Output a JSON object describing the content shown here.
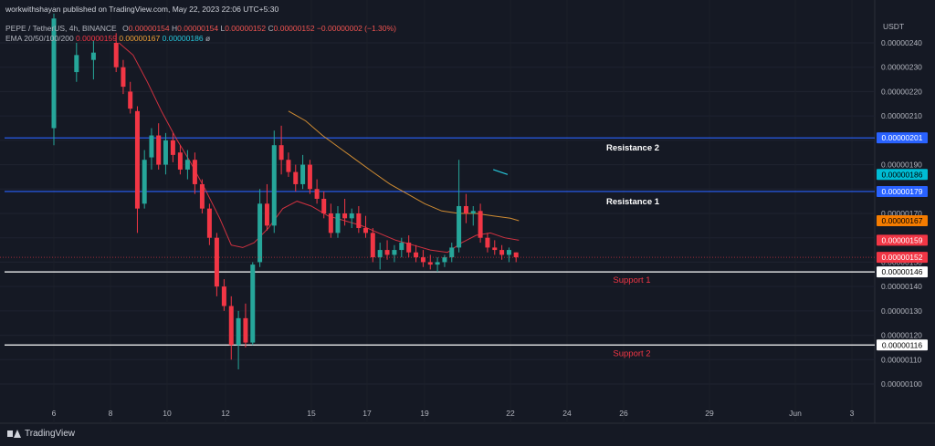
{
  "header": {
    "publisher": "workwithshayan published on TradingView.com, May 22, 2023 22:06 UTC+5:30",
    "symbol": "PEPE / TetherUS, 4h, BINANCE",
    "o_label": "O",
    "o_value": "0.00000154",
    "h_label": "H",
    "h_value": "0.00000154",
    "l_label": "L",
    "l_value": "0.00000152",
    "c_label": "C",
    "c_value": "0.00000152",
    "change": "−0.00000002 (−1.30%)",
    "ema_label": "EMA 20/50/100/200",
    "ema20_value": "0.00000159",
    "ema50_value": "0.00000167",
    "ema100_value": "0.00000186",
    "ema200_value": "ø"
  },
  "price_unit": "USDT",
  "footer": {
    "brand": "TradingView"
  },
  "chart_data": {
    "type": "candlestick",
    "title": "PEPE / TetherUS, 4h, BINANCE",
    "ylim": [
      9.5e-07,
      2.47e-06
    ],
    "y_ticks": [
      "0.00000100",
      "0.00000110",
      "0.00000120",
      "0.00000130",
      "0.00000140",
      "0.00000150",
      "0.00000160",
      "0.00000170",
      "0.00000180",
      "0.00000190",
      "0.00000200",
      "0.00000210",
      "0.00000220",
      "0.00000230",
      "0.00000240"
    ],
    "x_ticks": [
      "6",
      "8",
      "10",
      "12",
      "15",
      "17",
      "19",
      "22",
      "24",
      "26",
      "29",
      "Jun",
      "3"
    ],
    "horizontal_levels": [
      {
        "label": "Resistance 2",
        "value": 2.01e-06,
        "value_label": "0.00000201",
        "color": "#2962ff",
        "label_color": "#ffffff"
      },
      {
        "label": "Resistance 1",
        "value": 1.79e-06,
        "value_label": "0.00000179",
        "color": "#2962ff",
        "label_color": "#ffffff"
      },
      {
        "label": "Support 1",
        "value": 1.46e-06,
        "value_label": "0.00000146",
        "color": "#ffffff",
        "label_color": "#f23645"
      },
      {
        "label": "Support 2",
        "value": 1.16e-06,
        "value_label": "0.00000116",
        "color": "#ffffff",
        "label_color": "#f23645"
      }
    ],
    "price_labels": [
      {
        "value": 1.86e-06,
        "text": "0.00000186",
        "bg": "#00bcd4",
        "fg": "#000000"
      },
      {
        "value": 1.67e-06,
        "text": "0.00000167",
        "bg": "#f57c00",
        "fg": "#000000"
      },
      {
        "value": 1.59e-06,
        "text": "0.00000159",
        "bg": "#f23645",
        "fg": "#ffffff"
      },
      {
        "value": 1.52e-06,
        "text": "0.00000152",
        "bg": "#f23645",
        "fg": "#ffffff"
      }
    ],
    "colors": {
      "up": "#26a69a",
      "down": "#f23645",
      "ema20": "#f23645",
      "ema50": "#f0a035",
      "ema100": "#26c6da"
    },
    "candles": [
      {
        "x": "6",
        "o": 2.05,
        "h": 2.52,
        "l": 1.98,
        "c": 2.5
      },
      {
        "x": "6.8",
        "o": 2.28,
        "h": 2.4,
        "l": 2.24,
        "c": 2.35
      },
      {
        "x": "7.4",
        "o": 2.33,
        "h": 2.41,
        "l": 2.25,
        "c": 2.36
      },
      {
        "x": "8.2",
        "o": 2.4,
        "h": 2.44,
        "l": 2.28,
        "c": 2.3
      },
      {
        "x": "8.45",
        "o": 2.3,
        "h": 2.33,
        "l": 2.19,
        "c": 2.22
      },
      {
        "x": "8.7",
        "o": 2.2,
        "h": 2.24,
        "l": 2.11,
        "c": 2.13
      },
      {
        "x": "8.95",
        "o": 2.12,
        "h": 2.14,
        "l": 1.62,
        "c": 1.72
      },
      {
        "x": "9.2",
        "o": 1.74,
        "h": 1.96,
        "l": 1.72,
        "c": 1.92
      },
      {
        "x": "9.45",
        "o": 1.93,
        "h": 2.05,
        "l": 1.88,
        "c": 2.02
      },
      {
        "x": "9.7",
        "o": 2.02,
        "h": 2.07,
        "l": 1.88,
        "c": 1.9
      },
      {
        "x": "9.95",
        "o": 1.9,
        "h": 2.03,
        "l": 1.86,
        "c": 2.0
      },
      {
        "x": "10.2",
        "o": 2.0,
        "h": 2.03,
        "l": 1.91,
        "c": 1.94
      },
      {
        "x": "10.45",
        "o": 1.95,
        "h": 1.98,
        "l": 1.86,
        "c": 1.88
      },
      {
        "x": "10.7",
        "o": 1.88,
        "h": 1.96,
        "l": 1.84,
        "c": 1.92
      },
      {
        "x": "10.95",
        "o": 1.92,
        "h": 1.95,
        "l": 1.78,
        "c": 1.82
      },
      {
        "x": "11.2",
        "o": 1.82,
        "h": 1.84,
        "l": 1.7,
        "c": 1.72
      },
      {
        "x": "11.45",
        "o": 1.72,
        "h": 1.74,
        "l": 1.57,
        "c": 1.6
      },
      {
        "x": "11.7",
        "o": 1.6,
        "h": 1.62,
        "l": 1.36,
        "c": 1.4
      },
      {
        "x": "11.95",
        "o": 1.4,
        "h": 1.43,
        "l": 1.3,
        "c": 1.32
      },
      {
        "x": "12.2",
        "o": 1.32,
        "h": 1.36,
        "l": 1.1,
        "c": 1.16
      },
      {
        "x": "12.45",
        "o": 1.16,
        "h": 1.3,
        "l": 1.06,
        "c": 1.27
      },
      {
        "x": "12.7",
        "o": 1.27,
        "h": 1.33,
        "l": 1.15,
        "c": 1.17
      },
      {
        "x": "12.95",
        "o": 1.17,
        "h": 1.5,
        "l": 1.16,
        "c": 1.49
      },
      {
        "x": "13.2",
        "o": 1.5,
        "h": 1.8,
        "l": 1.48,
        "c": 1.74
      },
      {
        "x": "13.45",
        "o": 1.74,
        "h": 1.82,
        "l": 1.63,
        "c": 1.65
      },
      {
        "x": "13.7",
        "o": 1.65,
        "h": 2.04,
        "l": 1.62,
        "c": 1.98
      },
      {
        "x": "13.95",
        "o": 1.98,
        "h": 2.06,
        "l": 1.86,
        "c": 1.92
      },
      {
        "x": "14.2",
        "o": 1.92,
        "h": 1.95,
        "l": 1.85,
        "c": 1.87
      },
      {
        "x": "14.45",
        "o": 1.87,
        "h": 1.9,
        "l": 1.79,
        "c": 1.82
      },
      {
        "x": "14.7",
        "o": 1.82,
        "h": 1.94,
        "l": 1.8,
        "c": 1.9
      },
      {
        "x": "14.95",
        "o": 1.9,
        "h": 1.92,
        "l": 1.78,
        "c": 1.8
      },
      {
        "x": "15.2",
        "o": 1.8,
        "h": 1.84,
        "l": 1.74,
        "c": 1.76
      },
      {
        "x": "15.45",
        "o": 1.76,
        "h": 1.79,
        "l": 1.68,
        "c": 1.7
      },
      {
        "x": "15.7",
        "o": 1.7,
        "h": 1.74,
        "l": 1.6,
        "c": 1.62
      },
      {
        "x": "15.95",
        "o": 1.62,
        "h": 1.73,
        "l": 1.6,
        "c": 1.7
      },
      {
        "x": "16.2",
        "o": 1.7,
        "h": 1.76,
        "l": 1.65,
        "c": 1.68
      },
      {
        "x": "16.45",
        "o": 1.68,
        "h": 1.72,
        "l": 1.64,
        "c": 1.7
      },
      {
        "x": "16.7",
        "o": 1.7,
        "h": 1.73,
        "l": 1.62,
        "c": 1.64
      },
      {
        "x": "16.95",
        "o": 1.64,
        "h": 1.69,
        "l": 1.6,
        "c": 1.62
      },
      {
        "x": "17.2",
        "o": 1.62,
        "h": 1.64,
        "l": 1.5,
        "c": 1.52
      },
      {
        "x": "17.45",
        "o": 1.52,
        "h": 1.58,
        "l": 1.47,
        "c": 1.55
      },
      {
        "x": "17.7",
        "o": 1.55,
        "h": 1.59,
        "l": 1.51,
        "c": 1.53
      },
      {
        "x": "17.95",
        "o": 1.53,
        "h": 1.57,
        "l": 1.5,
        "c": 1.55
      },
      {
        "x": "18.2",
        "o": 1.55,
        "h": 1.6,
        "l": 1.52,
        "c": 1.58
      },
      {
        "x": "18.45",
        "o": 1.58,
        "h": 1.61,
        "l": 1.52,
        "c": 1.54
      },
      {
        "x": "18.7",
        "o": 1.54,
        "h": 1.57,
        "l": 1.5,
        "c": 1.52
      },
      {
        "x": "18.95",
        "o": 1.52,
        "h": 1.55,
        "l": 1.48,
        "c": 1.5
      },
      {
        "x": "19.2",
        "o": 1.5,
        "h": 1.53,
        "l": 1.47,
        "c": 1.49
      },
      {
        "x": "19.45",
        "o": 1.49,
        "h": 1.52,
        "l": 1.46,
        "c": 1.5
      },
      {
        "x": "19.7",
        "o": 1.5,
        "h": 1.53,
        "l": 1.48,
        "c": 1.52
      },
      {
        "x": "19.95",
        "o": 1.52,
        "h": 1.58,
        "l": 1.5,
        "c": 1.56
      },
      {
        "x": "20.2",
        "o": 1.56,
        "h": 1.92,
        "l": 1.54,
        "c": 1.73
      },
      {
        "x": "20.45",
        "o": 1.73,
        "h": 1.78,
        "l": 1.66,
        "c": 1.7
      },
      {
        "x": "20.7",
        "o": 1.7,
        "h": 1.73,
        "l": 1.65,
        "c": 1.71
      },
      {
        "x": "20.95",
        "o": 1.71,
        "h": 1.74,
        "l": 1.58,
        "c": 1.6
      },
      {
        "x": "21.2",
        "o": 1.6,
        "h": 1.62,
        "l": 1.54,
        "c": 1.56
      },
      {
        "x": "21.45",
        "o": 1.56,
        "h": 1.59,
        "l": 1.53,
        "c": 1.55
      },
      {
        "x": "21.7",
        "o": 1.55,
        "h": 1.57,
        "l": 1.51,
        "c": 1.53
      },
      {
        "x": "21.95",
        "o": 1.53,
        "h": 1.56,
        "l": 1.5,
        "c": 1.55
      },
      {
        "x": "22.2",
        "o": 1.54,
        "h": 1.54,
        "l": 1.5,
        "c": 1.52
      }
    ],
    "ema_series": [
      {
        "period": 20,
        "color": "#f23645",
        "points": [
          [
            8.3,
            2.4
          ],
          [
            8.8,
            2.35
          ],
          [
            9.3,
            2.24
          ],
          [
            9.8,
            2.12
          ],
          [
            10.3,
            2.01
          ],
          [
            10.8,
            1.91
          ],
          [
            11.3,
            1.8
          ],
          [
            11.8,
            1.68
          ],
          [
            12.2,
            1.57
          ],
          [
            12.6,
            1.56
          ],
          [
            13.0,
            1.58
          ],
          [
            13.5,
            1.64
          ],
          [
            14.0,
            1.72
          ],
          [
            14.5,
            1.75
          ],
          [
            15.0,
            1.73
          ],
          [
            15.6,
            1.69
          ],
          [
            16.2,
            1.67
          ],
          [
            16.8,
            1.65
          ],
          [
            17.4,
            1.62
          ],
          [
            18.0,
            1.59
          ],
          [
            18.6,
            1.57
          ],
          [
            19.2,
            1.55
          ],
          [
            19.8,
            1.54
          ],
          [
            20.3,
            1.58
          ],
          [
            20.8,
            1.61
          ],
          [
            21.3,
            1.62
          ],
          [
            21.8,
            1.6
          ],
          [
            22.3,
            1.59
          ]
        ]
      },
      {
        "period": 50,
        "color": "#f0a035",
        "points": [
          [
            14.2,
            2.12
          ],
          [
            14.8,
            2.08
          ],
          [
            15.4,
            2.02
          ],
          [
            16.0,
            1.97
          ],
          [
            16.6,
            1.92
          ],
          [
            17.2,
            1.87
          ],
          [
            17.8,
            1.82
          ],
          [
            18.4,
            1.78
          ],
          [
            19.0,
            1.74
          ],
          [
            19.6,
            1.71
          ],
          [
            20.2,
            1.7
          ],
          [
            20.8,
            1.7
          ],
          [
            21.4,
            1.69
          ],
          [
            22.0,
            1.68
          ],
          [
            22.3,
            1.67
          ]
        ]
      },
      {
        "period": 100,
        "color": "#26c6da",
        "points": [
          [
            21.4,
            1.88
          ],
          [
            21.9,
            1.86
          ]
        ]
      }
    ],
    "price_scale": "1e-6 (values in candles/ema_series are in millionths of USDT)"
  }
}
